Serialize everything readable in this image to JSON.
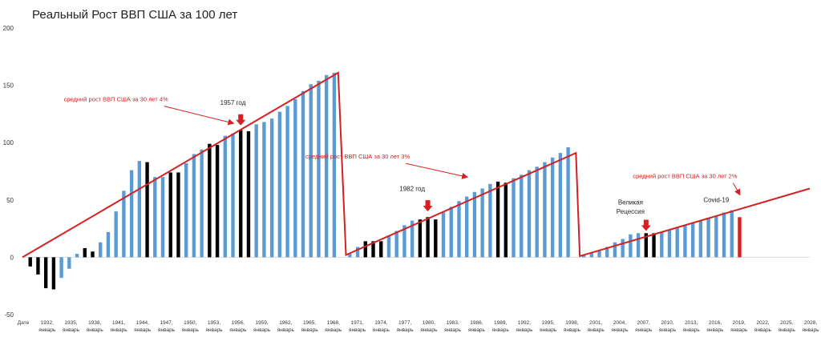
{
  "chart_data": {
    "type": "bar",
    "title": "Реальный Рост ВВП США за 100 лет",
    "ylim": [
      -50,
      200
    ],
    "yticks": [
      "200",
      "150",
      "100",
      "50",
      "0",
      "-50"
    ],
    "grid": false,
    "x_tick_labels": [
      {
        "line1": "Дате",
        "line2": ""
      },
      {
        "line1": "1932,",
        "line2": "январь"
      },
      {
        "line1": "1935,",
        "line2": "январь"
      },
      {
        "line1": "1938,",
        "line2": "январь"
      },
      {
        "line1": "1941,",
        "line2": "январь"
      },
      {
        "line1": "1944,",
        "line2": "январь"
      },
      {
        "line1": "1947,",
        "line2": "январь"
      },
      {
        "line1": "1950,",
        "line2": "январь"
      },
      {
        "line1": "1953,",
        "line2": "январь"
      },
      {
        "line1": "1956,",
        "line2": "январь"
      },
      {
        "line1": "1959,",
        "line2": "январь"
      },
      {
        "line1": "1962,",
        "line2": "январь"
      },
      {
        "line1": "1965,",
        "line2": "январь"
      },
      {
        "line1": "1968,",
        "line2": "январь"
      },
      {
        "line1": "1971,",
        "line2": "январь"
      },
      {
        "line1": "1974,",
        "line2": "январь"
      },
      {
        "line1": "1977,",
        "line2": "январь"
      },
      {
        "line1": "1980,",
        "line2": "январь"
      },
      {
        "line1": "1983,",
        "line2": "январь"
      },
      {
        "line1": "1986,",
        "line2": "январь"
      },
      {
        "line1": "1989,",
        "line2": "январь"
      },
      {
        "line1": "1992,",
        "line2": "январь"
      },
      {
        "line1": "1995,",
        "line2": "январь"
      },
      {
        "line1": "1998,",
        "line2": "январь"
      },
      {
        "line1": "2001,",
        "line2": "январь"
      },
      {
        "line1": "2004,",
        "line2": "январь"
      },
      {
        "line1": "2007,",
        "line2": "январь"
      },
      {
        "line1": "2010,",
        "line2": "январь"
      },
      {
        "line1": "2013,",
        "line2": "январь"
      },
      {
        "line1": "2016,",
        "line2": "январь"
      },
      {
        "line1": "2019,",
        "line2": "январь"
      },
      {
        "line1": "2022,",
        "line2": "январь"
      },
      {
        "line1": "2025,",
        "line2": "январь"
      },
      {
        "line1": "2028,",
        "line2": "январь"
      }
    ],
    "colors": {
      "normal": "#5b9bd5",
      "recession": "#000000",
      "covid": "#d42020",
      "trend": "#d42020"
    },
    "x_range": [
      1929,
      2030
    ],
    "bars": [
      {
        "year": 1930,
        "value": -8,
        "kind": "recession"
      },
      {
        "year": 1931,
        "value": -15,
        "kind": "recession"
      },
      {
        "year": 1932,
        "value": -27,
        "kind": "recession"
      },
      {
        "year": 1933,
        "value": -28,
        "kind": "recession"
      },
      {
        "year": 1934,
        "value": -18,
        "kind": "normal"
      },
      {
        "year": 1935,
        "value": -10,
        "kind": "normal"
      },
      {
        "year": 1936,
        "value": 3,
        "kind": "normal"
      },
      {
        "year": 1937,
        "value": 8,
        "kind": "recession"
      },
      {
        "year": 1938,
        "value": 5,
        "kind": "recession"
      },
      {
        "year": 1939,
        "value": 13,
        "kind": "normal"
      },
      {
        "year": 1940,
        "value": 22,
        "kind": "normal"
      },
      {
        "year": 1941,
        "value": 40,
        "kind": "normal"
      },
      {
        "year": 1942,
        "value": 58,
        "kind": "normal"
      },
      {
        "year": 1943,
        "value": 76,
        "kind": "normal"
      },
      {
        "year": 1944,
        "value": 84,
        "kind": "normal"
      },
      {
        "year": 1945,
        "value": 83,
        "kind": "recession"
      },
      {
        "year": 1946,
        "value": 70,
        "kind": "normal"
      },
      {
        "year": 1947,
        "value": 70,
        "kind": "normal"
      },
      {
        "year": 1948,
        "value": 74,
        "kind": "recession"
      },
      {
        "year": 1949,
        "value": 74,
        "kind": "recession"
      },
      {
        "year": 1950,
        "value": 82,
        "kind": "normal"
      },
      {
        "year": 1951,
        "value": 90,
        "kind": "normal"
      },
      {
        "year": 1952,
        "value": 94,
        "kind": "normal"
      },
      {
        "year": 1953,
        "value": 99,
        "kind": "recession"
      },
      {
        "year": 1954,
        "value": 98,
        "kind": "recession"
      },
      {
        "year": 1955,
        "value": 106,
        "kind": "normal"
      },
      {
        "year": 1956,
        "value": 108,
        "kind": "normal"
      },
      {
        "year": 1957,
        "value": 111,
        "kind": "recession"
      },
      {
        "year": 1958,
        "value": 110,
        "kind": "recession"
      },
      {
        "year": 1959,
        "value": 116,
        "kind": "normal"
      },
      {
        "year": 1960,
        "value": 118,
        "kind": "normal"
      },
      {
        "year": 1961,
        "value": 121,
        "kind": "normal"
      },
      {
        "year": 1962,
        "value": 127,
        "kind": "normal"
      },
      {
        "year": 1963,
        "value": 132,
        "kind": "normal"
      },
      {
        "year": 1964,
        "value": 138,
        "kind": "normal"
      },
      {
        "year": 1965,
        "value": 145,
        "kind": "normal"
      },
      {
        "year": 1966,
        "value": 151,
        "kind": "normal"
      },
      {
        "year": 1967,
        "value": 154,
        "kind": "normal"
      },
      {
        "year": 1968,
        "value": 159,
        "kind": "normal"
      },
      {
        "year": 1969,
        "value": 161,
        "kind": "normal"
      },
      {
        "year": 1971,
        "value": 3,
        "kind": "normal"
      },
      {
        "year": 1972,
        "value": 9,
        "kind": "normal"
      },
      {
        "year": 1973,
        "value": 14,
        "kind": "recession"
      },
      {
        "year": 1974,
        "value": 14,
        "kind": "recession"
      },
      {
        "year": 1975,
        "value": 14,
        "kind": "recession"
      },
      {
        "year": 1976,
        "value": 19,
        "kind": "normal"
      },
      {
        "year": 1977,
        "value": 23,
        "kind": "normal"
      },
      {
        "year": 1978,
        "value": 28,
        "kind": "normal"
      },
      {
        "year": 1979,
        "value": 32,
        "kind": "normal"
      },
      {
        "year": 1980,
        "value": 33,
        "kind": "recession"
      },
      {
        "year": 1981,
        "value": 35,
        "kind": "recession"
      },
      {
        "year": 1982,
        "value": 33,
        "kind": "recession"
      },
      {
        "year": 1983,
        "value": 39,
        "kind": "normal"
      },
      {
        "year": 1984,
        "value": 44,
        "kind": "normal"
      },
      {
        "year": 1985,
        "value": 49,
        "kind": "normal"
      },
      {
        "year": 1986,
        "value": 53,
        "kind": "normal"
      },
      {
        "year": 1987,
        "value": 57,
        "kind": "normal"
      },
      {
        "year": 1988,
        "value": 60,
        "kind": "normal"
      },
      {
        "year": 1989,
        "value": 64,
        "kind": "normal"
      },
      {
        "year": 1990,
        "value": 66,
        "kind": "recession"
      },
      {
        "year": 1991,
        "value": 65,
        "kind": "recession"
      },
      {
        "year": 1992,
        "value": 69,
        "kind": "normal"
      },
      {
        "year": 1993,
        "value": 72,
        "kind": "normal"
      },
      {
        "year": 1994,
        "value": 76,
        "kind": "normal"
      },
      {
        "year": 1995,
        "value": 79,
        "kind": "normal"
      },
      {
        "year": 1996,
        "value": 83,
        "kind": "normal"
      },
      {
        "year": 1997,
        "value": 87,
        "kind": "normal"
      },
      {
        "year": 1998,
        "value": 91,
        "kind": "normal"
      },
      {
        "year": 1999,
        "value": 96,
        "kind": "normal"
      },
      {
        "year": 2001,
        "value": 2,
        "kind": "normal"
      },
      {
        "year": 2002,
        "value": 4,
        "kind": "normal"
      },
      {
        "year": 2003,
        "value": 6,
        "kind": "normal"
      },
      {
        "year": 2004,
        "value": 9,
        "kind": "normal"
      },
      {
        "year": 2005,
        "value": 13,
        "kind": "normal"
      },
      {
        "year": 2006,
        "value": 16,
        "kind": "normal"
      },
      {
        "year": 2007,
        "value": 20,
        "kind": "normal"
      },
      {
        "year": 2008,
        "value": 21,
        "kind": "normal"
      },
      {
        "year": 2009,
        "value": 21,
        "kind": "recession"
      },
      {
        "year": 2010,
        "value": 21,
        "kind": "recession"
      },
      {
        "year": 2011,
        "value": 22,
        "kind": "normal"
      },
      {
        "year": 2012,
        "value": 24,
        "kind": "normal"
      },
      {
        "year": 2013,
        "value": 26,
        "kind": "normal"
      },
      {
        "year": 2014,
        "value": 28,
        "kind": "normal"
      },
      {
        "year": 2015,
        "value": 30,
        "kind": "normal"
      },
      {
        "year": 2016,
        "value": 32,
        "kind": "normal"
      },
      {
        "year": 2017,
        "value": 34,
        "kind": "normal"
      },
      {
        "year": 2018,
        "value": 36,
        "kind": "normal"
      },
      {
        "year": 2019,
        "value": 39,
        "kind": "normal"
      },
      {
        "year": 2020,
        "value": 41,
        "kind": "normal"
      },
      {
        "year": 2021,
        "value": 35,
        "kind": "covid"
      }
    ],
    "trend_lines": [
      {
        "points": [
          [
            1929,
            0
          ],
          [
            1969.5,
            161
          ],
          [
            1970.5,
            2
          ],
          [
            2000,
            91
          ],
          [
            2000.5,
            1
          ],
          [
            2030,
            60
          ]
        ]
      }
    ],
    "annotations": [
      {
        "text": "средний рост ВВП  США за 30 лет  4%",
        "style": "red",
        "x": 1941,
        "y": 136,
        "arrow_to": [
          1956,
          117
        ]
      },
      {
        "text": "1957 год",
        "style": "dark",
        "x": 1956,
        "y": 133,
        "arrow_to": [
          1957,
          115
        ]
      },
      {
        "text": "средний рост ВВП  США за 30 лет  3%",
        "style": "red",
        "x": 1972,
        "y": 86,
        "arrow_to": [
          1986,
          70
        ]
      },
      {
        "text": "1982 год",
        "style": "dark",
        "x": 1979,
        "y": 58,
        "arrow_to": [
          1981,
          40
        ]
      },
      {
        "text": "средний рост ВВП  США за 30 лет  2%",
        "style": "red",
        "x": 2014,
        "y": 69,
        "arrow_to": [
          2021,
          55
        ]
      },
      {
        "text": "Великая",
        "style": "dark",
        "x": 2007,
        "y": 46,
        "arrow_to": null
      },
      {
        "text": "Рецессия",
        "style": "dark",
        "x": 2007,
        "y": 38,
        "arrow_to": [
          2009,
          23
        ]
      },
      {
        "text": "Covid-19",
        "style": "dark",
        "x": 2018,
        "y": 48,
        "arrow_to": null
      }
    ]
  }
}
